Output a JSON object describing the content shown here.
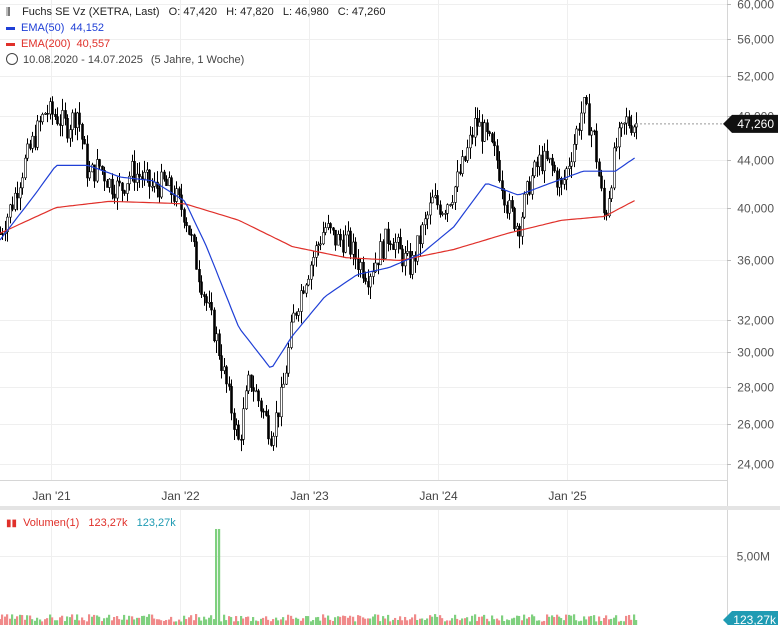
{
  "legend": {
    "instrument": "Fuchs SE Vz (XETRA, Last)",
    "open": "O: 47,420",
    "high": "H: 47,820",
    "low": "L: 46,980",
    "close": "C: 47,260",
    "ema50_label": "EMA(50)",
    "ema50_value": "44,152",
    "ema200_label": "EMA(200)",
    "ema200_value": "40,557",
    "range": "10.08.2020 - 14.07.2025",
    "range_span": "(5 Jahre, 1 Woche)"
  },
  "volume_legend": {
    "label": "Volumen(1)",
    "value_red": "123,27k",
    "value_blue": "123,27k"
  },
  "colors": {
    "ema50": "#1f3fd6",
    "ema200": "#e0302a",
    "price": "#000000",
    "vol_up": "#7fd07f",
    "vol_down": "#f08a8a",
    "price_tag": "#111111",
    "vol_tag": "#1f9bb3"
  },
  "chart_data": [
    {
      "type": "candlestick",
      "y_scale": "log",
      "ylim": [
        22500,
        60000
      ],
      "y_ticks": [
        "24,000",
        "26,000",
        "28,000",
        "30,000",
        "32,000",
        "36,000",
        "40,000",
        "44,000",
        "48,000",
        "52,000",
        "56,000",
        "60,000"
      ],
      "y_tick_values": [
        24000,
        26000,
        28000,
        30000,
        32000,
        36000,
        40000,
        44000,
        48000,
        52000,
        56000,
        60000
      ],
      "x_ticks": [
        "Jan '21",
        "Jan '22",
        "Jan '23",
        "Jan '24",
        "Jan '25"
      ],
      "x_tick_dates": [
        "2021-01",
        "2022-01",
        "2023-01",
        "2024-01",
        "2025-01"
      ],
      "last_price_label": "47,260",
      "last_price": 47260,
      "price_path": [
        [
          "2020-08",
          38000
        ],
        [
          "2020-09",
          40500
        ],
        [
          "2020-10",
          43500
        ],
        [
          "2020-11",
          46000
        ],
        [
          "2020-12",
          48500
        ],
        [
          "2021-01",
          48000
        ],
        [
          "2021-02",
          47000
        ],
        [
          "2021-03",
          48500
        ],
        [
          "2021-04",
          42500
        ],
        [
          "2021-05",
          43500
        ],
        [
          "2021-06",
          42000
        ],
        [
          "2021-07",
          41500
        ],
        [
          "2021-08",
          43000
        ],
        [
          "2021-09",
          42500
        ],
        [
          "2021-10",
          41500
        ],
        [
          "2021-11",
          42000
        ],
        [
          "2021-12",
          41000
        ],
        [
          "2022-01",
          39500
        ],
        [
          "2022-02",
          36000
        ],
        [
          "2022-03",
          33000
        ],
        [
          "2022-04",
          30500
        ],
        [
          "2022-05",
          27500
        ],
        [
          "2022-06",
          25000
        ],
        [
          "2022-07",
          28500
        ],
        [
          "2022-08",
          27000
        ],
        [
          "2022-09",
          25500
        ],
        [
          "2022-10",
          27500
        ],
        [
          "2022-11",
          32000
        ],
        [
          "2022-12",
          34500
        ],
        [
          "2023-01",
          36500
        ],
        [
          "2023-02",
          38500
        ],
        [
          "2023-03",
          37500
        ],
        [
          "2023-04",
          37500
        ],
        [
          "2023-05",
          36000
        ],
        [
          "2023-06",
          35000
        ],
        [
          "2023-07",
          36500
        ],
        [
          "2023-08",
          38000
        ],
        [
          "2023-09",
          36500
        ],
        [
          "2023-10",
          35500
        ],
        [
          "2023-11",
          38000
        ],
        [
          "2023-12",
          40500
        ],
        [
          "2024-01",
          40000
        ],
        [
          "2024-02",
          41500
        ],
        [
          "2024-03",
          44000
        ],
        [
          "2024-04",
          47500
        ],
        [
          "2024-05",
          46000
        ],
        [
          "2024-06",
          44000
        ],
        [
          "2024-07",
          40000
        ],
        [
          "2024-08",
          38500
        ],
        [
          "2024-09",
          42000
        ],
        [
          "2024-10",
          44000
        ],
        [
          "2024-11",
          43500
        ],
        [
          "2024-12",
          41500
        ],
        [
          "2025-01",
          45000
        ],
        [
          "2025-02",
          49000
        ],
        [
          "2025-03",
          46000
        ],
        [
          "2025-04",
          39000
        ],
        [
          "2025-05",
          45000
        ],
        [
          "2025-06",
          47500
        ],
        [
          "2025-07",
          47260
        ]
      ],
      "ema50": [
        [
          "2020-08",
          37500
        ],
        [
          "2020-11",
          41000
        ],
        [
          "2021-01",
          43500
        ],
        [
          "2021-04",
          43500
        ],
        [
          "2021-07",
          42500
        ],
        [
          "2021-10",
          42200
        ],
        [
          "2022-01",
          40500
        ],
        [
          "2022-03",
          37000
        ],
        [
          "2022-06",
          31500
        ],
        [
          "2022-09",
          29000
        ],
        [
          "2022-11",
          31000
        ],
        [
          "2023-02",
          33500
        ],
        [
          "2023-05",
          35000
        ],
        [
          "2023-08",
          35500
        ],
        [
          "2023-11",
          36500
        ],
        [
          "2024-02",
          38500
        ],
        [
          "2024-05",
          42000
        ],
        [
          "2024-08",
          41000
        ],
        [
          "2024-11",
          42000
        ],
        [
          "2025-02",
          43000
        ],
        [
          "2025-05",
          43000
        ],
        [
          "2025-07",
          44152
        ]
      ],
      "ema200": [
        [
          "2020-08",
          38000
        ],
        [
          "2021-01",
          40000
        ],
        [
          "2021-06",
          40500
        ],
        [
          "2022-01",
          40300
        ],
        [
          "2022-06",
          39000
        ],
        [
          "2022-11",
          37000
        ],
        [
          "2023-04",
          36200
        ],
        [
          "2023-09",
          36000
        ],
        [
          "2024-02",
          36800
        ],
        [
          "2024-07",
          38000
        ],
        [
          "2024-12",
          39000
        ],
        [
          "2025-04",
          39300
        ],
        [
          "2025-07",
          40557
        ]
      ]
    },
    {
      "type": "bar",
      "label": "Volumen(1)",
      "y_ticks": [
        "5,00M"
      ],
      "y_tick_values": [
        5000000
      ],
      "last_volume_label": "123,27k",
      "last_volume": 123270,
      "spike_date": "2022-04",
      "spike_volume": 7000000
    }
  ]
}
